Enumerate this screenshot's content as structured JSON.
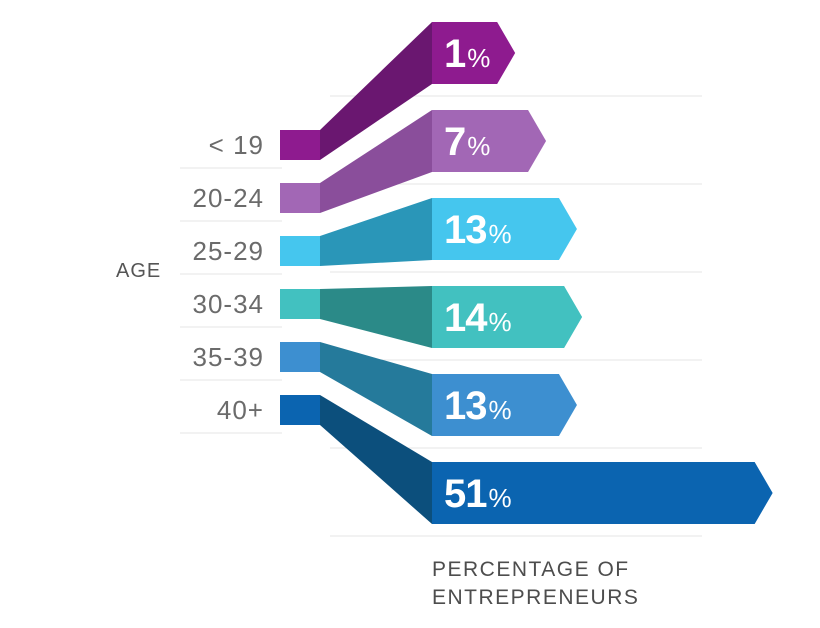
{
  "chart_data": {
    "type": "bar",
    "title": "",
    "xlabel": "PERCENTAGE OF ENTREPRENEURS",
    "xlabel_lines": [
      "PERCENTAGE OF",
      "ENTREPRENEURS"
    ],
    "ylabel": "AGE",
    "categories": [
      "< 19",
      "20-24",
      "25-29",
      "30-34",
      "35-39",
      "40+"
    ],
    "values": [
      1,
      7,
      13,
      14,
      13,
      51
    ],
    "value_labels": [
      "1",
      "7",
      "13",
      "14",
      "13",
      "51"
    ],
    "value_suffix": "%",
    "colors": [
      "#8e1b8f",
      "#a267b5",
      "#45c6ee",
      "#42c1c0",
      "#3d8fd0",
      "#0b64b0"
    ],
    "ribbon_colors": [
      "#6a1770",
      "#8a4e9b",
      "#2a96b8",
      "#2b8a88",
      "#257a9b",
      "#0c4f7c"
    ],
    "grid": true,
    "legend": "none"
  }
}
